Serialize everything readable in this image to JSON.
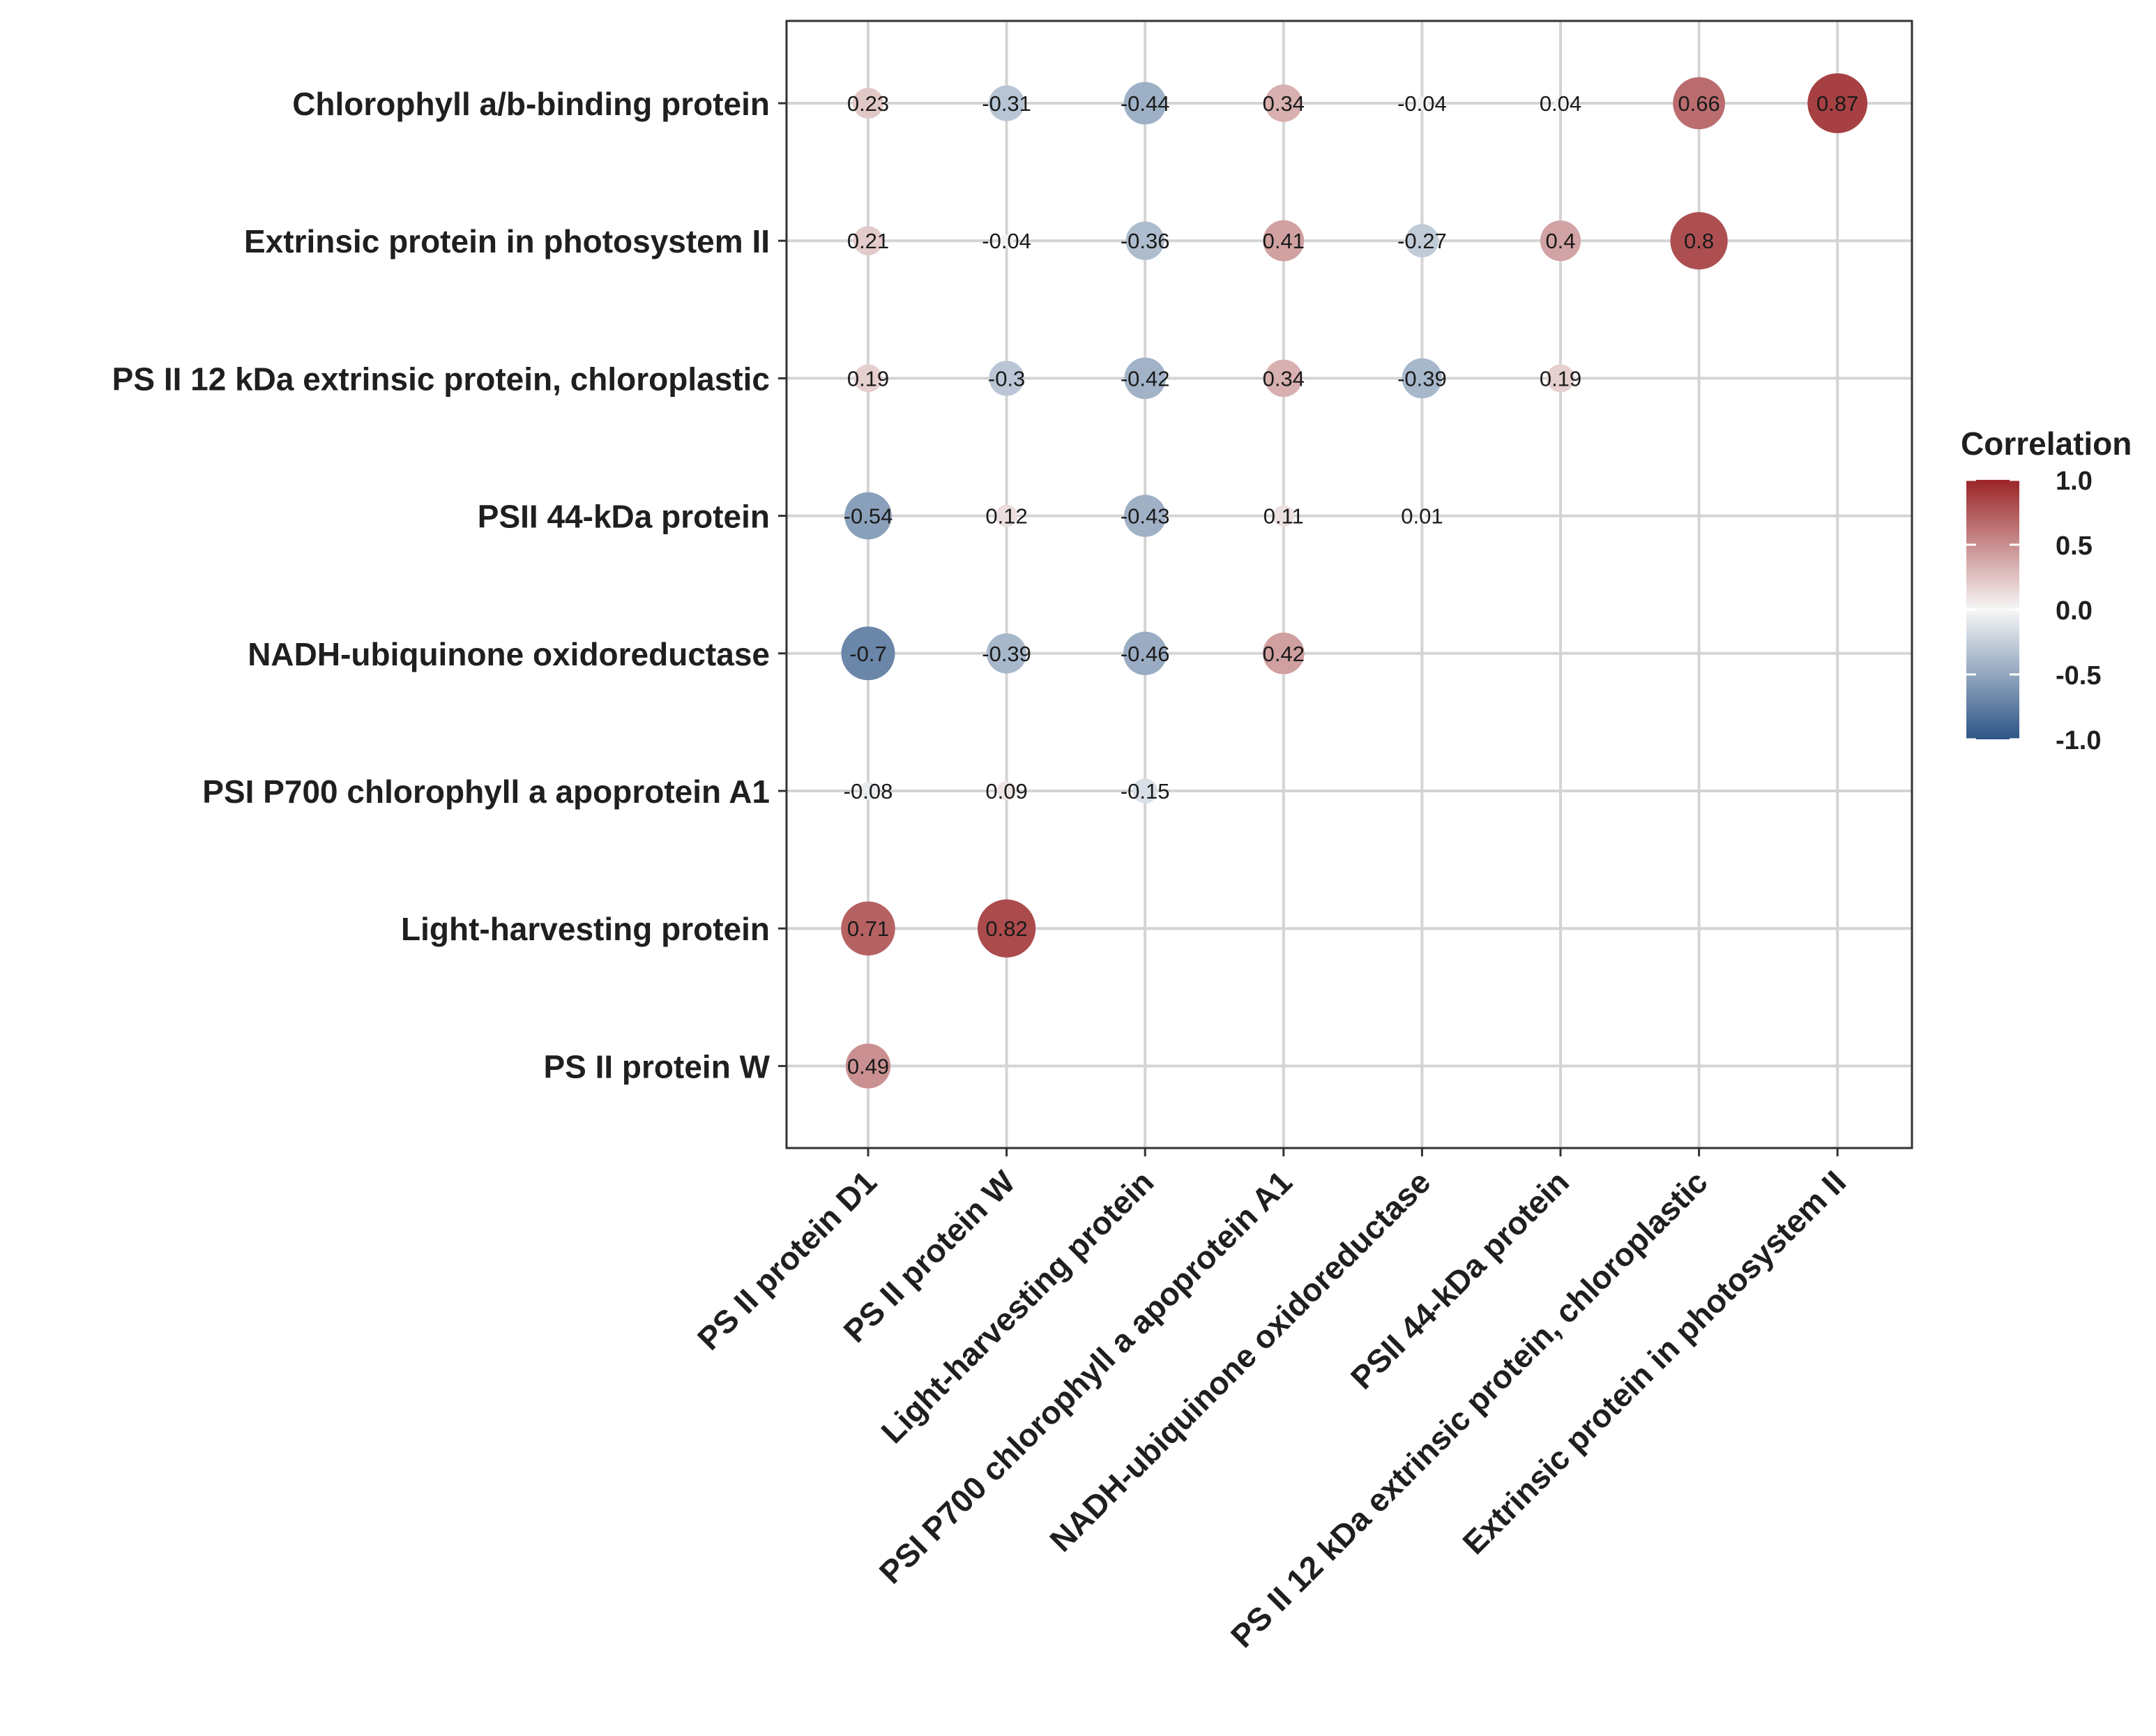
{
  "chart_data": {
    "type": "correlation-bubble-matrix",
    "title": "",
    "xlabel": "",
    "ylabel": "",
    "rows": [
      "Chlorophyll a/b-binding protein",
      "Extrinsic protein in photosystem II",
      "PS II 12 kDa extrinsic protein, chloroplastic",
      "PSII 44-kDa protein",
      "NADH-ubiquinone oxidoreductase",
      "PSI P700 chlorophyll a apoprotein A1",
      "Light-harvesting protein",
      "PS II protein W"
    ],
    "columns": [
      "PS II protein D1",
      "PS II protein W",
      "Light-harvesting protein",
      "PSI P700 chlorophyll a apoprotein A1",
      "NADH-ubiquinone oxidoreductase",
      "PSII 44-kDa protein",
      "PS II 12 kDa extrinsic protein, chloroplastic",
      "Extrinsic protein in photosystem II"
    ],
    "values": [
      [
        0.23,
        -0.31,
        -0.44,
        0.34,
        -0.04,
        0.04,
        0.66,
        0.87
      ],
      [
        0.21,
        -0.04,
        -0.36,
        0.41,
        -0.27,
        0.4,
        0.8,
        null
      ],
      [
        0.19,
        -0.3,
        -0.42,
        0.34,
        -0.39,
        0.19,
        null,
        null
      ],
      [
        -0.54,
        0.12,
        -0.43,
        0.11,
        0.01,
        null,
        null,
        null
      ],
      [
        -0.7,
        -0.39,
        -0.46,
        0.42,
        null,
        null,
        null,
        null
      ],
      [
        -0.08,
        0.09,
        -0.15,
        null,
        null,
        null,
        null,
        null
      ],
      [
        0.71,
        0.82,
        null,
        null,
        null,
        null,
        null,
        null
      ],
      [
        0.49,
        null,
        null,
        null,
        null,
        null,
        null,
        null
      ]
    ],
    "labels": [
      [
        "0.23",
        "-0.31",
        "-0.44",
        "0.34",
        "-0.04",
        "0.04",
        "0.66",
        "0.87"
      ],
      [
        "0.21",
        "-0.04",
        "-0.36",
        "0.41",
        "-0.27",
        "0.4",
        "0.8",
        null
      ],
      [
        "0.19",
        "-0.3",
        "-0.42",
        "0.34",
        "-0.39",
        "0.19",
        null,
        null
      ],
      [
        "-0.54",
        "0.12",
        "-0.43",
        "0.11",
        "0.01",
        null,
        null,
        null
      ],
      [
        "-0.7",
        "-0.39",
        "-0.46",
        "0.42",
        null,
        null,
        null,
        null
      ],
      [
        "-0.08",
        "0.09",
        "-0.15",
        null,
        null,
        null,
        null,
        null
      ],
      [
        "0.71",
        "0.82",
        null,
        null,
        null,
        null,
        null,
        null
      ],
      [
        "0.49",
        null,
        null,
        null,
        null,
        null,
        null,
        null
      ]
    ],
    "legend": {
      "title": "Correlation",
      "placement": "right",
      "ticks": [
        {
          "value": 1.0,
          "label": "1.0"
        },
        {
          "value": 0.5,
          "label": "0.5"
        },
        {
          "value": 0.0,
          "label": "0.0"
        },
        {
          "value": -0.5,
          "label": "-0.5"
        },
        {
          "value": -1.0,
          "label": "-1.0"
        }
      ],
      "range": [
        -1.0,
        1.0
      ]
    },
    "colors": {
      "negative": "#2d5586",
      "mid": "#f7f7f7",
      "positive": "#9b2527"
    },
    "grid": true
  }
}
